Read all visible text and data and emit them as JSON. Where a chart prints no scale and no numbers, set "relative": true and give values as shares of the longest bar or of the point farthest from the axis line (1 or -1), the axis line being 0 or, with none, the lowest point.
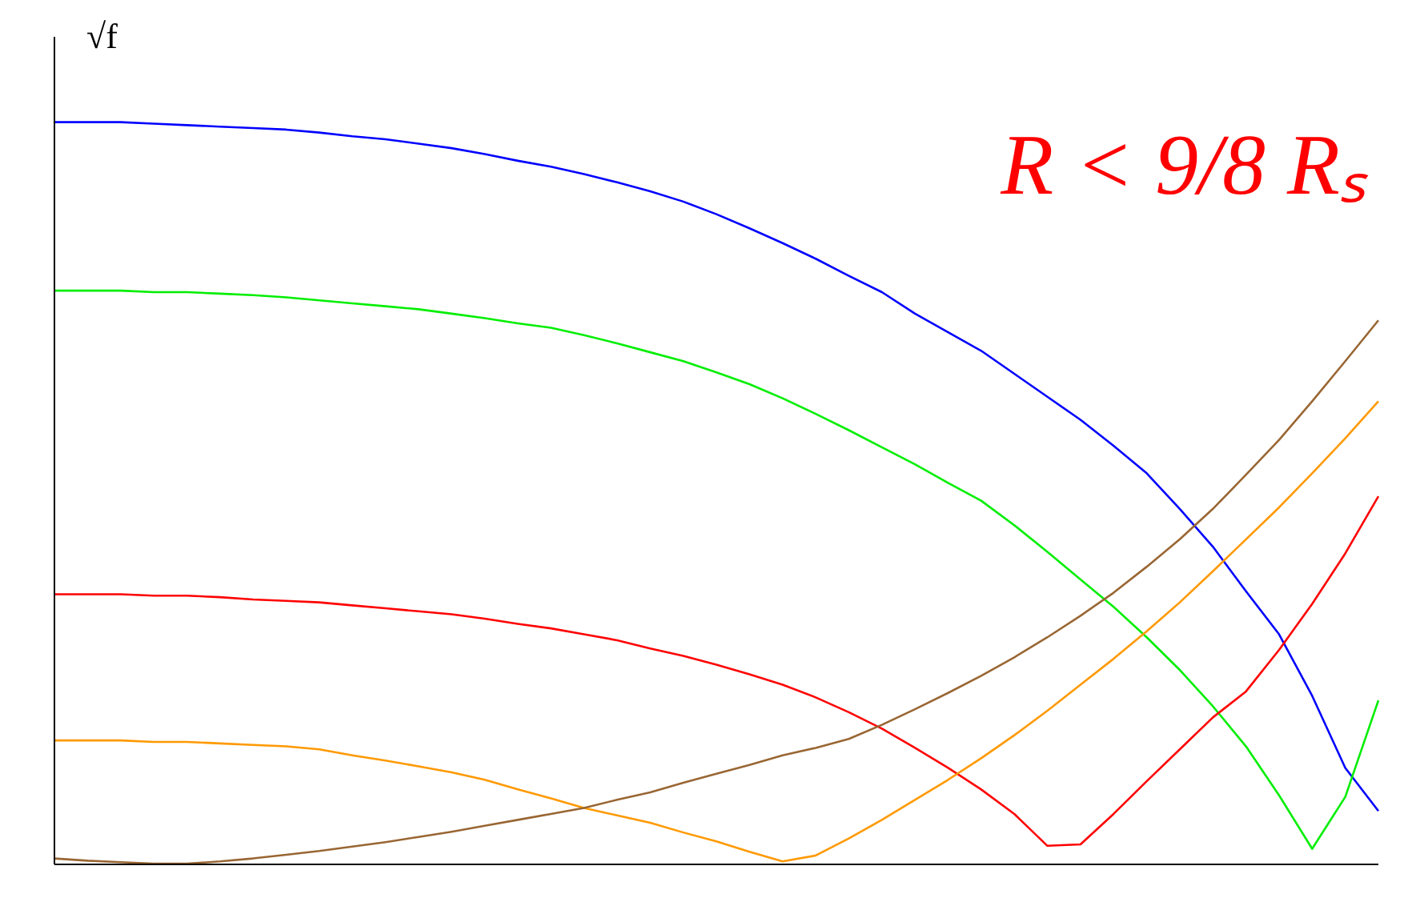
{
  "chart_data": {
    "type": "line",
    "ylabel": "√f",
    "annotations": [
      "R < 9/8 Rₛ"
    ],
    "relative": true,
    "marker": "none",
    "line_style": "solid",
    "categories": [
      null,
      null,
      null,
      null,
      null,
      null,
      null,
      null,
      null,
      null,
      null,
      null,
      null,
      null,
      null,
      null,
      null,
      null,
      null,
      null,
      null,
      null,
      null,
      null,
      null,
      null,
      null,
      null,
      null,
      null,
      null,
      null,
      null,
      null,
      null,
      null,
      null,
      null,
      null,
      null,
      null
    ],
    "series": [
      {
        "color": "#0000ff",
        "values": [
          1,
          1,
          1,
          0.998,
          0.996,
          0.994,
          0.992,
          0.99,
          0.986,
          0.981,
          0.977,
          0.971,
          0.965,
          0.957,
          0.948,
          0.94,
          0.93,
          0.919,
          0.907,
          0.893,
          0.876,
          0.857,
          0.837,
          0.816,
          0.793,
          0.771,
          0.742,
          0.717,
          0.692,
          0.661,
          0.63,
          0.599,
          0.564,
          0.527,
          0.479,
          0.428,
          0.368,
          0.31,
          0.227,
          0.13,
          0.072
        ]
      },
      {
        "color": "#00ee00",
        "values": [
          0.773,
          0.773,
          0.773,
          0.771,
          0.771,
          0.769,
          0.767,
          0.764,
          0.76,
          0.756,
          0.752,
          0.748,
          0.742,
          0.736,
          0.729,
          0.723,
          0.713,
          0.702,
          0.69,
          0.678,
          0.663,
          0.647,
          0.628,
          0.607,
          0.585,
          0.562,
          0.539,
          0.514,
          0.49,
          0.457,
          0.421,
          0.384,
          0.347,
          0.306,
          0.262,
          0.213,
          0.159,
          0.093,
          0.021,
          0.091,
          0.221
        ]
      },
      {
        "color": "#ff0000",
        "values": [
          0.364,
          0.364,
          0.364,
          0.362,
          0.362,
          0.36,
          0.357,
          0.355,
          0.353,
          0.349,
          0.345,
          0.341,
          0.337,
          0.331,
          0.324,
          0.318,
          0.31,
          0.302,
          0.291,
          0.281,
          0.269,
          0.256,
          0.242,
          0.225,
          0.205,
          0.183,
          0.157,
          0.13,
          0.101,
          0.068,
          0.025,
          0.027,
          0.068,
          0.112,
          0.155,
          0.198,
          0.233,
          0.289,
          0.351,
          0.419,
          0.496
        ]
      },
      {
        "color": "#ff9900",
        "values": [
          0.167,
          0.167,
          0.167,
          0.165,
          0.165,
          0.163,
          0.161,
          0.159,
          0.155,
          0.147,
          0.14,
          0.132,
          0.124,
          0.114,
          0.101,
          0.089,
          0.076,
          0.066,
          0.056,
          0.043,
          0.031,
          0.017,
          0.004,
          0.012,
          0.035,
          0.06,
          0.087,
          0.114,
          0.143,
          0.174,
          0.207,
          0.242,
          0.277,
          0.314,
          0.353,
          0.395,
          0.438,
          0.481,
          0.527,
          0.574,
          0.624
        ]
      },
      {
        "color": "#996633",
        "values": [
          0.008,
          0.005,
          0.003,
          0.001,
          0.001,
          0.004,
          0.008,
          0.013,
          0.018,
          0.024,
          0.03,
          0.037,
          0.044,
          0.052,
          0.06,
          0.068,
          0.076,
          0.087,
          0.097,
          0.11,
          0.122,
          0.134,
          0.147,
          0.157,
          0.169,
          0.188,
          0.209,
          0.231,
          0.254,
          0.279,
          0.306,
          0.335,
          0.366,
          0.401,
          0.438,
          0.479,
          0.525,
          0.572,
          0.624,
          0.678,
          0.733
        ]
      }
    ]
  }
}
